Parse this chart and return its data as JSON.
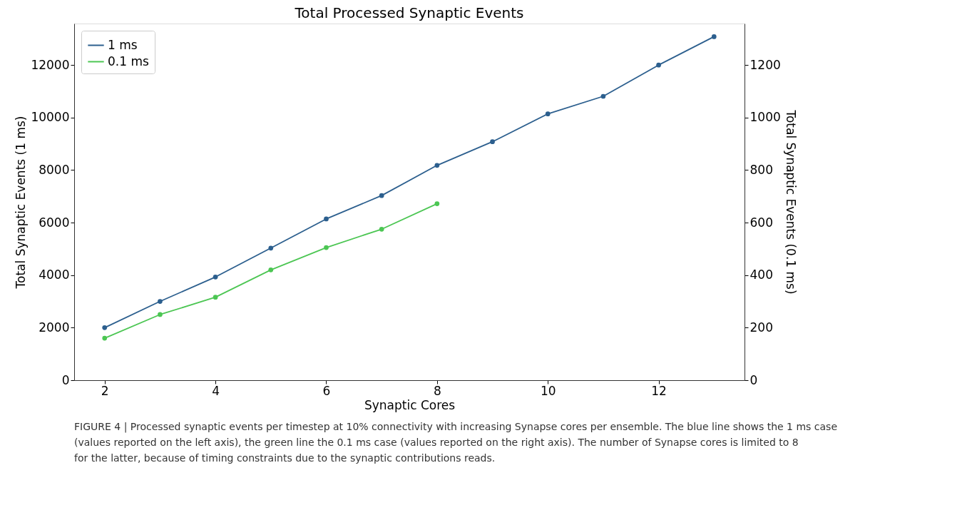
{
  "chart_data": {
    "type": "line",
    "title": "Total Processed Synaptic Events",
    "xlabel": "Synaptic Cores",
    "ylabel": "Total Synaptic Events (1 ms)",
    "y2label": "Total Synaptic Events (0.1 ms)",
    "xlim": [
      1.45,
      13.55
    ],
    "xticks": [
      2,
      4,
      6,
      8,
      10,
      12
    ],
    "ylim": [
      0,
      13580
    ],
    "yticks": [
      0,
      2000,
      4000,
      6000,
      8000,
      10000,
      12000
    ],
    "y2lim": [
      0,
      1358
    ],
    "y2ticks": [
      0,
      200,
      400,
      600,
      800,
      1000,
      1200
    ],
    "series": [
      {
        "name": "1 ms",
        "color": "#2c5f8e",
        "x": [
          2,
          3,
          4,
          5,
          6,
          7,
          8,
          9,
          10,
          11,
          12,
          13
        ],
        "values": [
          2000,
          3000,
          3930,
          5030,
          6140,
          7030,
          8180,
          9080,
          10140,
          10810,
          12000,
          13080
        ]
      },
      {
        "name": "0.1 ms",
        "color": "#4cc653",
        "axis": "y2",
        "x": [
          2,
          3,
          4,
          5,
          6,
          7,
          8
        ],
        "values": [
          160,
          250,
          316,
          420,
          505,
          575,
          672
        ]
      }
    ],
    "marker": "circle",
    "line_style": "solid",
    "legend": "top left",
    "grid": false,
    "annotations": [
      "FIGURE 4 | Processed synaptic events per timestep at 10% connectivity with increasing Synapse cores per ensemble. The blue line shows the 1 ms case (values reported on the left axis), the green line the 0.1 ms case (values reported on the right axis). The number of Synapse cores is limited to 8 for the latter, because of timing constraints due to the synaptic contributions reads."
    ]
  }
}
